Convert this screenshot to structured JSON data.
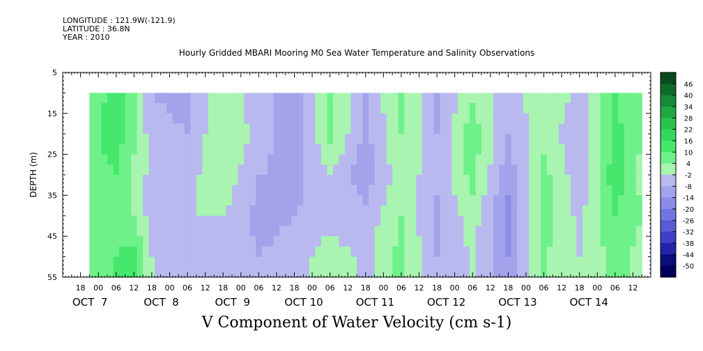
{
  "meta": {
    "longitude": "LONGITUDE : 121.9W(-121.9)",
    "latitude": "LATITUDE : 36.8N",
    "year": "YEAR : 2010"
  },
  "title": "Hourly Gridded MBARI Mooring M0 Sea Water Temperature and Salinity Observations",
  "caption": "V Component of Water Velocity (cm s-1)",
  "chart_data": {
    "type": "heatmap",
    "title": "Hourly Gridded MBARI Mooring M0 Sea Water Temperature and Salinity Observations",
    "xlabel": "",
    "ylabel": "DEPTH (m)",
    "variable": "V Component of Water Velocity (cm s-1)",
    "x_axis": {
      "hour_ticks": [
        "18",
        "00",
        "06",
        "12",
        "18",
        "00",
        "06",
        "12",
        "18",
        "00",
        "06",
        "12",
        "18",
        "00",
        "06",
        "12",
        "18",
        "00",
        "06",
        "12",
        "18",
        "00",
        "06",
        "12",
        "18",
        "00",
        "06",
        "12",
        "18",
        "00",
        "06",
        "12"
      ],
      "day_labels": [
        "OCT  7",
        "OCT  8",
        "OCT  9",
        "OCT 10",
        "OCT 11",
        "OCT 12",
        "OCT 13",
        "OCT 14"
      ],
      "range": [
        "2010-10-06 12:00",
        "2010-10-14 18:00"
      ]
    },
    "y_axis": {
      "ticks": [
        5,
        15,
        25,
        35,
        45,
        55
      ],
      "range": [
        55,
        5
      ],
      "inverted": true
    },
    "data_depth_range": [
      10,
      55
    ],
    "data_time_range": [
      "2010-10-06 21:00",
      "2010-10-14 15:00"
    ],
    "colorbar": {
      "labels": [
        "46",
        "40",
        "34",
        "28",
        "22",
        "16",
        "10",
        "4",
        "-2",
        "-8",
        "-14",
        "-20",
        "-26",
        "-32",
        "-38",
        "-44",
        "-50"
      ],
      "colors": [
        "#0b4a1f",
        "#0f6a2b",
        "#168a36",
        "#1fa842",
        "#28c44e",
        "#33d95c",
        "#46e76d",
        "#6ef188",
        "#a8f4b0",
        "#b9b9f0",
        "#a3a3ec",
        "#8c8ce7",
        "#7474e0",
        "#5a5ad6",
        "#3f3fc7",
        "#2424a8",
        "#0c0c7a",
        "#000058"
      ]
    },
    "series": [
      {
        "name": "V velocity",
        "depths": [
          10,
          20,
          30,
          40,
          50
        ],
        "values_by_time": [
          {
            "t": "2010-10-06 21:00",
            "v": [
              6,
              8,
              6,
              4,
              8
            ]
          },
          {
            "t": "2010-10-07 06:00",
            "v": [
              12,
              14,
              10,
              6,
              10
            ]
          },
          {
            "t": "2010-10-07 12:00",
            "v": [
              8,
              6,
              2,
              4,
              12
            ]
          },
          {
            "t": "2010-10-07 18:00",
            "v": [
              -8,
              -6,
              -4,
              -6,
              -2
            ]
          },
          {
            "t": "2010-10-08 06:00",
            "v": [
              -10,
              -8,
              -4,
              -2,
              -6
            ]
          },
          {
            "t": "2010-10-08 18:00",
            "v": [
              2,
              4,
              2,
              -2,
              -4
            ]
          },
          {
            "t": "2010-10-09 06:00",
            "v": [
              -6,
              -4,
              -8,
              -10,
              -8
            ]
          },
          {
            "t": "2010-10-09 18:00",
            "v": [
              -12,
              -14,
              -10,
              -8,
              -6
            ]
          },
          {
            "t": "2010-10-10 06:00",
            "v": [
              4,
              6,
              -2,
              -6,
              2
            ]
          },
          {
            "t": "2010-10-10 18:00",
            "v": [
              -8,
              -10,
              -12,
              -6,
              -4
            ]
          },
          {
            "t": "2010-10-11 06:00",
            "v": [
              6,
              4,
              2,
              4,
              6
            ]
          },
          {
            "t": "2010-10-11 18:00",
            "v": [
              -10,
              -8,
              -6,
              -10,
              -8
            ]
          },
          {
            "t": "2010-10-12 06:00",
            "v": [
              2,
              8,
              6,
              2,
              -2
            ]
          },
          {
            "t": "2010-10-12 18:00",
            "v": [
              -6,
              -8,
              -12,
              -16,
              -14
            ]
          },
          {
            "t": "2010-10-13 06:00",
            "v": [
              4,
              2,
              6,
              8,
              4
            ]
          },
          {
            "t": "2010-10-13 18:00",
            "v": [
              -4,
              -8,
              -6,
              -4,
              -2
            ]
          },
          {
            "t": "2010-10-14 06:00",
            "v": [
              10,
              12,
              14,
              10,
              6
            ]
          },
          {
            "t": "2010-10-14 15:00",
            "v": [
              6,
              4,
              2,
              4,
              2
            ]
          }
        ]
      }
    ]
  }
}
